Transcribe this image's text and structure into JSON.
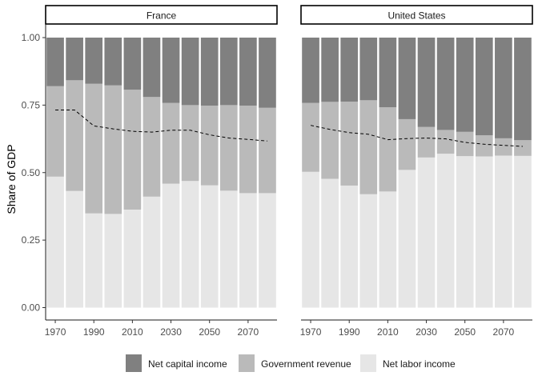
{
  "chart_data": {
    "type": "bar",
    "ylabel": "Share of GDP",
    "xlabel": "",
    "ylim": [
      0,
      1
    ],
    "yticks": [
      "0.00",
      "0.25",
      "0.50",
      "0.75",
      "1.00"
    ],
    "xticks": [
      "1970",
      "1990",
      "2010",
      "2030",
      "2050",
      "2070"
    ],
    "x": [
      1970,
      1980,
      1990,
      2000,
      2010,
      2020,
      2030,
      2040,
      2050,
      2060,
      2070,
      2080
    ],
    "stacking": "stacked, bottom to top: Net labor income, Government revenue, Net capital income",
    "legend_position": "bottom",
    "colors": {
      "net_capital_income": "#808080",
      "government_revenue": "#bababa",
      "net_labor_income": "#e6e6e6",
      "dashed_line": "#000000"
    },
    "legend": [
      {
        "key": "net_capital_income",
        "label": "Net capital income"
      },
      {
        "key": "government_revenue",
        "label": "Government revenue"
      },
      {
        "key": "net_labor_income",
        "label": "Net labor income"
      }
    ],
    "panels": [
      {
        "title": "France",
        "net_labor_income": [
          0.485,
          0.432,
          0.349,
          0.347,
          0.363,
          0.411,
          0.459,
          0.469,
          0.453,
          0.433,
          0.424,
          0.424
        ],
        "government_revenue": [
          0.335,
          0.41,
          0.48,
          0.476,
          0.444,
          0.369,
          0.299,
          0.281,
          0.295,
          0.317,
          0.324,
          0.316
        ],
        "net_capital_income": [
          0.18,
          0.158,
          0.171,
          0.177,
          0.193,
          0.22,
          0.242,
          0.25,
          0.252,
          0.25,
          0.252,
          0.26
        ],
        "dashed_line": [
          0.732,
          0.732,
          0.673,
          0.662,
          0.653,
          0.65,
          0.657,
          0.657,
          0.64,
          0.628,
          0.623,
          0.617
        ]
      },
      {
        "title": "United States",
        "net_labor_income": [
          0.503,
          0.477,
          0.452,
          0.42,
          0.43,
          0.51,
          0.556,
          0.57,
          0.561,
          0.56,
          0.563,
          0.562
        ],
        "government_revenue": [
          0.255,
          0.285,
          0.311,
          0.348,
          0.312,
          0.188,
          0.113,
          0.088,
          0.09,
          0.078,
          0.064,
          0.058
        ],
        "net_capital_income": [
          0.242,
          0.238,
          0.237,
          0.232,
          0.258,
          0.302,
          0.331,
          0.342,
          0.349,
          0.362,
          0.373,
          0.38
        ],
        "dashed_line": [
          0.675,
          0.66,
          0.648,
          0.642,
          0.622,
          0.626,
          0.628,
          0.625,
          0.612,
          0.605,
          0.601,
          0.597
        ]
      }
    ]
  }
}
